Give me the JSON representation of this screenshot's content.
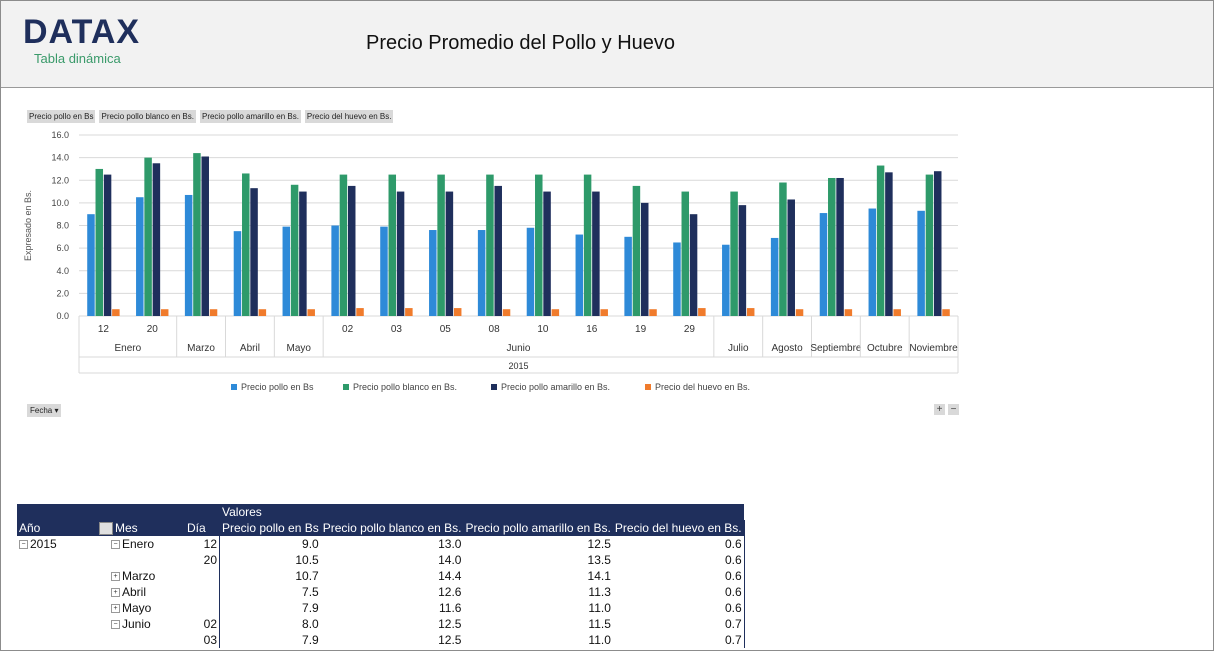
{
  "header": {
    "logo": "DATAX",
    "logo_sub": "Tabla dinámica",
    "title": "Precio Promedio del Pollo y Huevo"
  },
  "field_buttons": [
    "Precio pollo en Bs",
    "Precio pollo blanco en Bs.",
    "Precio pollo amarillo en Bs.",
    "Precio del huevo en Bs."
  ],
  "fecha_button": "Fecha",
  "colors": {
    "s1": "#2e8ad8",
    "s2": "#2e9a6a",
    "s3": "#1f2f5c",
    "s4": "#f07b2c",
    "header_bg": "#1f2f5c"
  },
  "chart_data": {
    "type": "bar",
    "ylabel": "Expresado en Bs.",
    "ylim": [
      0,
      16
    ],
    "yticks": [
      "0.0",
      "2.0",
      "4.0",
      "6.0",
      "8.0",
      "10.0",
      "12.0",
      "14.0",
      "16.0"
    ],
    "categories": [
      "12",
      "20",
      "",
      "",
      "",
      "02",
      "03",
      "05",
      "08",
      "10",
      "16",
      "19",
      "29",
      "",
      "",
      "",
      "",
      ""
    ],
    "months": [
      {
        "label": "Enero",
        "span": 2
      },
      {
        "label": "Marzo",
        "span": 1
      },
      {
        "label": "Abril",
        "span": 1
      },
      {
        "label": "Mayo",
        "span": 1
      },
      {
        "label": "Junio",
        "span": 8
      },
      {
        "label": "Julio",
        "span": 1
      },
      {
        "label": "Agosto",
        "span": 1
      },
      {
        "label": "Septiembre",
        "span": 1
      },
      {
        "label": "Octubre",
        "span": 1
      },
      {
        "label": "Noviembre",
        "span": 1
      }
    ],
    "year": "2015",
    "series": [
      {
        "name": "Precio pollo en Bs",
        "values": [
          9.0,
          10.5,
          10.7,
          7.5,
          7.9,
          8.0,
          7.9,
          7.6,
          7.6,
          7.8,
          7.2,
          7.0,
          6.5,
          6.3,
          6.9,
          9.1,
          9.5,
          9.3
        ]
      },
      {
        "name": "Precio pollo blanco en Bs.",
        "values": [
          13.0,
          14.0,
          14.4,
          12.6,
          11.6,
          12.5,
          12.5,
          12.5,
          12.5,
          12.5,
          12.5,
          11.5,
          11.0,
          11.0,
          11.8,
          12.2,
          13.3,
          12.5
        ]
      },
      {
        "name": "Precio pollo amarillo en Bs.",
        "values": [
          12.5,
          13.5,
          14.1,
          11.3,
          11.0,
          11.5,
          11.0,
          11.0,
          11.5,
          11.0,
          11.0,
          10.0,
          9.0,
          9.8,
          10.3,
          12.2,
          12.7,
          12.8
        ]
      },
      {
        "name": "Precio del huevo en Bs.",
        "values": [
          0.6,
          0.6,
          0.6,
          0.6,
          0.6,
          0.7,
          0.7,
          0.7,
          0.6,
          0.6,
          0.6,
          0.6,
          0.7,
          0.7,
          0.6,
          0.6,
          0.6,
          0.6
        ]
      }
    ]
  },
  "pivot": {
    "valores": "Valores",
    "col_headers": [
      "Año",
      "Mes",
      "Día",
      "Precio pollo en Bs",
      "Precio pollo blanco en Bs.",
      "Precio pollo amarillo en Bs.",
      "Precio del huevo en Bs."
    ],
    "rows": [
      {
        "year": "2015",
        "month": "Enero",
        "day": "12",
        "v1": "9.0",
        "v2": "13.0",
        "v3": "12.5",
        "v4": "0.6"
      },
      {
        "year": "",
        "month": "",
        "day": "20",
        "v1": "10.5",
        "v2": "14.0",
        "v3": "13.5",
        "v4": "0.6"
      },
      {
        "year": "",
        "month": "Marzo",
        "day": "",
        "v1": "10.7",
        "v2": "14.4",
        "v3": "14.1",
        "v4": "0.6"
      },
      {
        "year": "",
        "month": "Abril",
        "day": "",
        "v1": "7.5",
        "v2": "12.6",
        "v3": "11.3",
        "v4": "0.6"
      },
      {
        "year": "",
        "month": "Mayo",
        "day": "",
        "v1": "7.9",
        "v2": "11.6",
        "v3": "11.0",
        "v4": "0.6"
      },
      {
        "year": "",
        "month": "Junio",
        "day": "02",
        "v1": "8.0",
        "v2": "12.5",
        "v3": "11.5",
        "v4": "0.7"
      },
      {
        "year": "",
        "month": "",
        "day": "03",
        "v1": "7.9",
        "v2": "12.5",
        "v3": "11.0",
        "v4": "0.7"
      }
    ]
  }
}
